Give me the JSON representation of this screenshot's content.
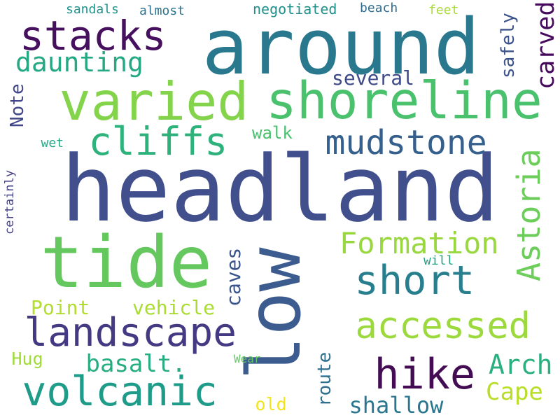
{
  "words": [
    {
      "text": "headland",
      "color": "#414f8c"
    },
    {
      "text": "low",
      "color": "#3c5b8e"
    },
    {
      "text": "around",
      "color": "#2a788d"
    },
    {
      "text": "tide",
      "color": "#65c85e"
    },
    {
      "text": "varied",
      "color": "#84d44b"
    },
    {
      "text": "shoreline",
      "color": "#4ac16d"
    },
    {
      "text": "stacks",
      "color": "#46105f"
    },
    {
      "text": "landscape",
      "color": "#443983"
    },
    {
      "text": "volcanic",
      "color": "#1e9c89"
    },
    {
      "text": "accessed",
      "color": "#9bd93c"
    },
    {
      "text": "hike",
      "color": "#440c53"
    },
    {
      "text": "cliffs",
      "color": "#2eb27c"
    },
    {
      "text": "mudstone",
      "color": "#35608d"
    },
    {
      "text": "short",
      "color": "#277f8e"
    },
    {
      "text": "Astoria",
      "color": "#6ccd5a"
    },
    {
      "text": "Formation",
      "color": "#98d83e"
    },
    {
      "text": "daunting",
      "color": "#25a984"
    },
    {
      "text": "Arch",
      "color": "#2ab07f"
    },
    {
      "text": "basalt.",
      "color": "#27ad81"
    },
    {
      "text": "Cape",
      "color": "#b8de29"
    },
    {
      "text": "shallow",
      "color": "#2a768e"
    },
    {
      "text": "carved",
      "color": "#460a5d"
    },
    {
      "text": "caves",
      "color": "#3a538b"
    },
    {
      "text": "Point",
      "color": "#b1dd2f"
    },
    {
      "text": "vehicle",
      "color": "#aadc32"
    },
    {
      "text": "Note",
      "color": "#404688"
    },
    {
      "text": "route",
      "color": "#2e6f8e"
    },
    {
      "text": "safely",
      "color": "#3b528b"
    },
    {
      "text": "several",
      "color": "#3e4a89"
    },
    {
      "text": "Hug",
      "color": "#a0da39"
    },
    {
      "text": "old",
      "color": "#f1e51d"
    },
    {
      "text": "walk",
      "color": "#48c16e"
    },
    {
      "text": "negotiated",
      "color": "#21908d"
    },
    {
      "text": "beach",
      "color": "#2e6d8e"
    },
    {
      "text": "sandals",
      "color": "#20928c"
    },
    {
      "text": "almost",
      "color": "#2c728e"
    },
    {
      "text": "feet",
      "color": "#a8db34"
    },
    {
      "text": "wet",
      "color": "#22a785"
    },
    {
      "text": "certainly",
      "color": "#424086"
    },
    {
      "text": "will",
      "color": "#20a486"
    },
    {
      "text": "Wear",
      "color": "#60ca60"
    }
  ]
}
